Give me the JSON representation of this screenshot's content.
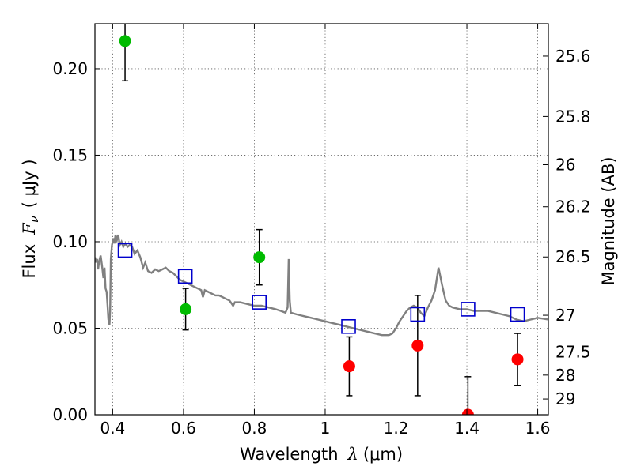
{
  "chart_data": {
    "type": "scatter",
    "xlabel_prefix": "Wavelength",
    "xlabel_math": "λ",
    "xlabel_unit": "(μm)",
    "ylabel_prefix": "Flux",
    "ylabel_math": "F",
    "ylabel_math_sub": "ν",
    "ylabel_unit": "( μJy )",
    "y2label": "Magnitude (AB)",
    "xlim": [
      0.35,
      1.63
    ],
    "ylim": [
      0.0,
      0.226
    ],
    "grid": true,
    "x_ticks": [
      0.4,
      0.6,
      0.8,
      1.0,
      1.2,
      1.4,
      1.6
    ],
    "x_tick_labels": [
      "0.4",
      "0.6",
      "0.8",
      "1",
      "1.2",
      "1.4",
      "1.6"
    ],
    "y_ticks": [
      0.0,
      0.05,
      0.1,
      0.15,
      0.2
    ],
    "y_tick_labels": [
      "0.00",
      "0.05",
      "0.10",
      "0.15",
      "0.20"
    ],
    "y2_ticks": [
      {
        "label": "25.6",
        "flux": 0.2073
      },
      {
        "label": "25.8",
        "flux": 0.1724
      },
      {
        "label": "26",
        "flux": 0.1445
      },
      {
        "label": "26.2",
        "flux": 0.1202
      },
      {
        "label": "26.5",
        "flux": 0.0912
      },
      {
        "label": "27",
        "flux": 0.0575
      },
      {
        "label": "27.5",
        "flux": 0.0363
      },
      {
        "label": "28",
        "flux": 0.0229
      },
      {
        "label": "29",
        "flux": 0.0091
      }
    ],
    "series": [
      {
        "kind": "model_spectrum",
        "color": "#808080",
        "points": [
          [
            0.35,
            0.091
          ],
          [
            0.353,
            0.088
          ],
          [
            0.356,
            0.09
          ],
          [
            0.359,
            0.084
          ],
          [
            0.362,
            0.089
          ],
          [
            0.366,
            0.092
          ],
          [
            0.37,
            0.086
          ],
          [
            0.374,
            0.079
          ],
          [
            0.377,
            0.085
          ],
          [
            0.38,
            0.073
          ],
          [
            0.383,
            0.071
          ],
          [
            0.386,
            0.062
          ],
          [
            0.388,
            0.055
          ],
          [
            0.391,
            0.052
          ],
          [
            0.393,
            0.06
          ],
          [
            0.395,
            0.09
          ],
          [
            0.398,
            0.098
          ],
          [
            0.402,
            0.102
          ],
          [
            0.405,
            0.099
          ],
          [
            0.408,
            0.104
          ],
          [
            0.412,
            0.101
          ],
          [
            0.416,
            0.104
          ],
          [
            0.42,
            0.098
          ],
          [
            0.425,
            0.1
          ],
          [
            0.43,
            0.097
          ],
          [
            0.436,
            0.099
          ],
          [
            0.442,
            0.097
          ],
          [
            0.448,
            0.098
          ],
          [
            0.455,
            0.097
          ],
          [
            0.462,
            0.093
          ],
          [
            0.47,
            0.095
          ],
          [
            0.478,
            0.091
          ],
          [
            0.486,
            0.085
          ],
          [
            0.492,
            0.088
          ],
          [
            0.5,
            0.083
          ],
          [
            0.51,
            0.082
          ],
          [
            0.52,
            0.084
          ],
          [
            0.53,
            0.083
          ],
          [
            0.54,
            0.084
          ],
          [
            0.55,
            0.085
          ],
          [
            0.56,
            0.083
          ],
          [
            0.57,
            0.082
          ],
          [
            0.58,
            0.08
          ],
          [
            0.59,
            0.078
          ],
          [
            0.6,
            0.077
          ],
          [
            0.61,
            0.076
          ],
          [
            0.62,
            0.075
          ],
          [
            0.63,
            0.074
          ],
          [
            0.64,
            0.073
          ],
          [
            0.65,
            0.072
          ],
          [
            0.655,
            0.068
          ],
          [
            0.66,
            0.072
          ],
          [
            0.67,
            0.071
          ],
          [
            0.68,
            0.07
          ],
          [
            0.69,
            0.069
          ],
          [
            0.7,
            0.069
          ],
          [
            0.71,
            0.068
          ],
          [
            0.72,
            0.067
          ],
          [
            0.73,
            0.066
          ],
          [
            0.74,
            0.063
          ],
          [
            0.745,
            0.065
          ],
          [
            0.76,
            0.065
          ],
          [
            0.78,
            0.064
          ],
          [
            0.8,
            0.063
          ],
          [
            0.82,
            0.063
          ],
          [
            0.84,
            0.062
          ],
          [
            0.86,
            0.061
          ],
          [
            0.875,
            0.06
          ],
          [
            0.888,
            0.059
          ],
          [
            0.894,
            0.062
          ],
          [
            0.897,
            0.09
          ],
          [
            0.9,
            0.066
          ],
          [
            0.903,
            0.059
          ],
          [
            0.92,
            0.058
          ],
          [
            0.94,
            0.057
          ],
          [
            0.96,
            0.056
          ],
          [
            0.98,
            0.055
          ],
          [
            1.0,
            0.054
          ],
          [
            1.02,
            0.053
          ],
          [
            1.04,
            0.052
          ],
          [
            1.06,
            0.051
          ],
          [
            1.08,
            0.05
          ],
          [
            1.1,
            0.049
          ],
          [
            1.12,
            0.048
          ],
          [
            1.14,
            0.047
          ],
          [
            1.16,
            0.046
          ],
          [
            1.18,
            0.046
          ],
          [
            1.19,
            0.047
          ],
          [
            1.2,
            0.05
          ],
          [
            1.21,
            0.054
          ],
          [
            1.22,
            0.057
          ],
          [
            1.23,
            0.06
          ],
          [
            1.24,
            0.062
          ],
          [
            1.25,
            0.063
          ],
          [
            1.26,
            0.062
          ],
          [
            1.27,
            0.059
          ],
          [
            1.28,
            0.057
          ],
          [
            1.29,
            0.062
          ],
          [
            1.3,
            0.066
          ],
          [
            1.31,
            0.072
          ],
          [
            1.32,
            0.085
          ],
          [
            1.33,
            0.075
          ],
          [
            1.34,
            0.066
          ],
          [
            1.35,
            0.063
          ],
          [
            1.36,
            0.062
          ],
          [
            1.38,
            0.061
          ],
          [
            1.4,
            0.061
          ],
          [
            1.42,
            0.06
          ],
          [
            1.44,
            0.06
          ],
          [
            1.46,
            0.06
          ],
          [
            1.48,
            0.059
          ],
          [
            1.5,
            0.058
          ],
          [
            1.52,
            0.057
          ],
          [
            1.54,
            0.055
          ],
          [
            1.56,
            0.054
          ],
          [
            1.58,
            0.055
          ],
          [
            1.6,
            0.056
          ],
          [
            1.63,
            0.055
          ]
        ]
      },
      {
        "kind": "model_photometry",
        "marker": "open-square",
        "color": "#0000cc",
        "points": [
          [
            0.435,
            0.095
          ],
          [
            0.605,
            0.08
          ],
          [
            0.814,
            0.065
          ],
          [
            1.066,
            0.051
          ],
          [
            1.261,
            0.058
          ],
          [
            1.403,
            0.061
          ],
          [
            1.543,
            0.058
          ]
        ]
      },
      {
        "kind": "detections",
        "marker": "filled-circle",
        "color": "#00bb00",
        "points": [
          {
            "x": 0.435,
            "y": 0.216,
            "err": 0.023
          },
          {
            "x": 0.606,
            "y": 0.061,
            "err": 0.012
          },
          {
            "x": 0.814,
            "y": 0.091,
            "err": 0.016
          }
        ]
      },
      {
        "kind": "non_detections",
        "marker": "filled-circle",
        "color": "#ff0000",
        "points": [
          {
            "x": 1.068,
            "y": 0.028,
            "err": 0.017
          },
          {
            "x": 1.261,
            "y": 0.04,
            "err": 0.029
          },
          {
            "x": 1.403,
            "y": 0.0,
            "err": 0.022
          },
          {
            "x": 1.543,
            "y": 0.032,
            "err": 0.015
          }
        ]
      }
    ]
  }
}
